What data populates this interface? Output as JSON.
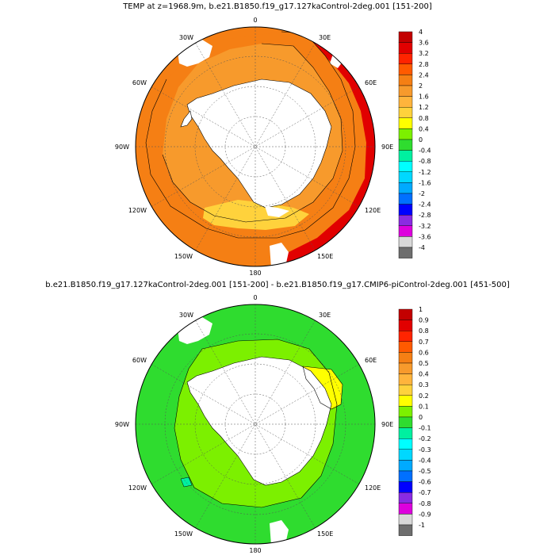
{
  "panels": [
    {
      "title": "TEMP at z=1968.9m, b.e21.B1850.f19_g17.127kaControl-2deg.001 [151-200]",
      "lon_labels": [
        "0",
        "30E",
        "60E",
        "90E",
        "120E",
        "150E",
        "180",
        "150W",
        "120W",
        "90W",
        "60W",
        "30W"
      ],
      "colorbar": {
        "labels": [
          "4",
          "3.6",
          "3.2",
          "2.8",
          "2.4",
          "2",
          "1.6",
          "1.2",
          "0.8",
          "0.4",
          "0",
          "-0.4",
          "-0.8",
          "-1.2",
          "-1.6",
          "-2",
          "-2.4",
          "-2.8",
          "-3.2",
          "-3.6",
          "-4"
        ],
        "colors": [
          "#c30000",
          "#e10000",
          "#ff2400",
          "#ff5a00",
          "#f57f14",
          "#f79a2c",
          "#ffb43c",
          "#ffd23c",
          "#ffff00",
          "#7cf000",
          "#2fdc2f",
          "#00f0a0",
          "#00ffff",
          "#00d8ff",
          "#00aaff",
          "#0070ff",
          "#0000ff",
          "#8a2be2",
          "#dd00dd",
          "#d8d8d8",
          "#6e6e6e"
        ]
      }
    },
    {
      "title": "b.e21.B1850.f19_g17.127kaControl-2deg.001 [151-200] - b.e21.B1850.f19_g17.CMIP6-piControl-2deg.001 [451-500]",
      "lon_labels": [
        "0",
        "30E",
        "60E",
        "90E",
        "120E",
        "150E",
        "180",
        "150W",
        "120W",
        "90W",
        "60W",
        "30W"
      ],
      "colorbar": {
        "labels": [
          "1",
          "0.9",
          "0.8",
          "0.7",
          "0.6",
          "0.5",
          "0.4",
          "0.3",
          "0.2",
          "0.1",
          "0",
          "-0.1",
          "-0.2",
          "-0.3",
          "-0.4",
          "-0.5",
          "-0.6",
          "-0.7",
          "-0.8",
          "-0.9",
          "-1"
        ],
        "colors": [
          "#c30000",
          "#e10000",
          "#ff2400",
          "#ff5a00",
          "#f57f14",
          "#f79a2c",
          "#ffb43c",
          "#ffd23c",
          "#ffff00",
          "#7cf000",
          "#2fdc2f",
          "#00f0a0",
          "#00ffff",
          "#00d8ff",
          "#00aaff",
          "#0070ff",
          "#0000ff",
          "#8a2be2",
          "#dd00dd",
          "#d8d8d8",
          "#6e6e6e"
        ]
      }
    }
  ]
}
